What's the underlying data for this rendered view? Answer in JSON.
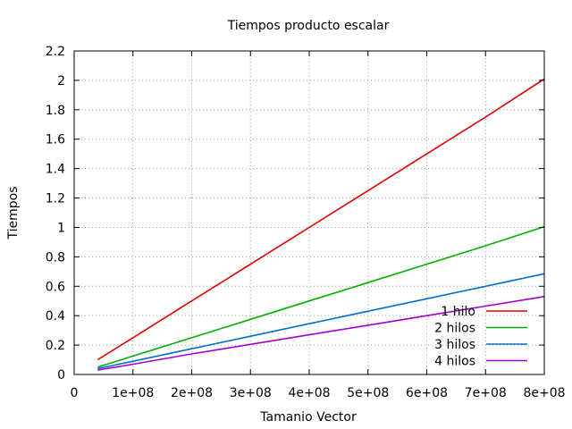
{
  "chart_data": {
    "type": "line",
    "title": "Tiempos producto escalar",
    "xlabel": "Tamanio Vector",
    "ylabel": "Tiempos",
    "xlim": [
      0,
      800000000
    ],
    "ylim": [
      0,
      2.2
    ],
    "x_ticks": [
      0,
      100000000,
      200000000,
      300000000,
      400000000,
      500000000,
      600000000,
      700000000,
      800000000
    ],
    "x_tick_labels": [
      "0",
      "1e+08",
      "2e+08",
      "3e+08",
      "4e+08",
      "5e+08",
      "6e+08",
      "7e+08",
      "8e+08"
    ],
    "y_ticks": [
      0,
      0.2,
      0.4,
      0.6,
      0.8,
      1,
      1.2,
      1.4,
      1.6,
      1.8,
      2,
      2.2
    ],
    "y_tick_labels": [
      "0",
      "0.2",
      "0.4",
      "0.6",
      "0.8",
      "1",
      "1.2",
      "1.4",
      "1.6",
      "1.8",
      "2",
      "2.2"
    ],
    "grid": true,
    "legend_position": "bottom-right",
    "x": [
      40000000,
      100000000,
      200000000,
      300000000,
      400000000,
      500000000,
      600000000,
      700000000,
      800000000
    ],
    "series": [
      {
        "name": "1 hilo",
        "color": "#dd0000",
        "values": [
          0.1,
          0.25,
          0.5,
          0.75,
          1.0,
          1.25,
          1.5,
          1.75,
          2.01
        ]
      },
      {
        "name": "2 hilos",
        "color": "#00b000",
        "values": [
          0.05,
          0.125,
          0.25,
          0.375,
          0.5,
          0.625,
          0.75,
          0.875,
          1.005
        ]
      },
      {
        "name": "3 hilos",
        "color": "#0070d0",
        "values": [
          0.04,
          0.09,
          0.175,
          0.26,
          0.345,
          0.43,
          0.515,
          0.6,
          0.685
        ]
      },
      {
        "name": "4 hilos",
        "color": "#a000d0",
        "values": [
          0.03,
          0.07,
          0.14,
          0.205,
          0.27,
          0.335,
          0.4,
          0.465,
          0.53
        ]
      }
    ]
  }
}
